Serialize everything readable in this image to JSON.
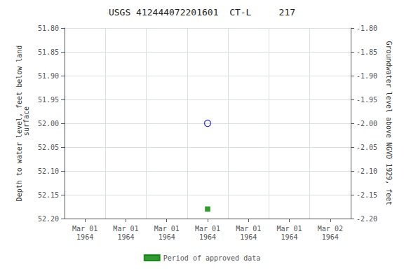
{
  "chart_data": {
    "type": "scatter",
    "title": "USGS 412444072201601  CT-L     217",
    "categories": [
      "Mar 01\n1964",
      "Mar 01\n1964",
      "Mar 01\n1964",
      "Mar 01\n1964",
      "Mar 01\n1964",
      "Mar 01\n1964",
      "Mar 02\n1964"
    ],
    "series": [
      {
        "color": "#0000cc",
        "marker": "open_circle",
        "values": [
          null,
          null,
          null,
          52.0,
          null,
          null,
          null
        ]
      },
      {
        "name": "Period of approved data",
        "color": "#008000",
        "marker": "square",
        "values": [
          null,
          null,
          null,
          52.18,
          null,
          null,
          null
        ]
      }
    ],
    "ylabel": "Depth to water level, feet below land\n surface",
    "y2label": "Groundwater level above NGVD 1929, feet",
    "ylim": [
      52.2,
      51.8
    ],
    "yticks": [
      {
        "value": 51.8,
        "label": "51.80"
      },
      {
        "value": 51.85,
        "label": "51.85"
      },
      {
        "value": 51.9,
        "label": "51.90"
      },
      {
        "value": 51.95,
        "label": "51.95"
      },
      {
        "value": 52.0,
        "label": "52.00"
      },
      {
        "value": 52.05,
        "label": "52.05"
      },
      {
        "value": 52.1,
        "label": "52.10"
      },
      {
        "value": 52.15,
        "label": "52.15"
      },
      {
        "value": 52.2,
        "label": "52.20"
      }
    ],
    "y2lim": [
      -2.2,
      -1.8
    ],
    "y2ticks": [
      {
        "value": -1.8,
        "label": "-1.80"
      },
      {
        "value": -1.85,
        "label": "-1.85"
      },
      {
        "value": -1.9,
        "label": "-1.90"
      },
      {
        "value": -1.95,
        "label": "-1.95"
      },
      {
        "value": -2.0,
        "label": "-2.00"
      },
      {
        "value": -2.05,
        "label": "-2.05"
      },
      {
        "value": -2.1,
        "label": "-2.10"
      },
      {
        "value": -2.15,
        "label": "-2.15"
      },
      {
        "value": -2.2,
        "label": "-2.20"
      }
    ],
    "grid": true,
    "legend": "bottom"
  }
}
